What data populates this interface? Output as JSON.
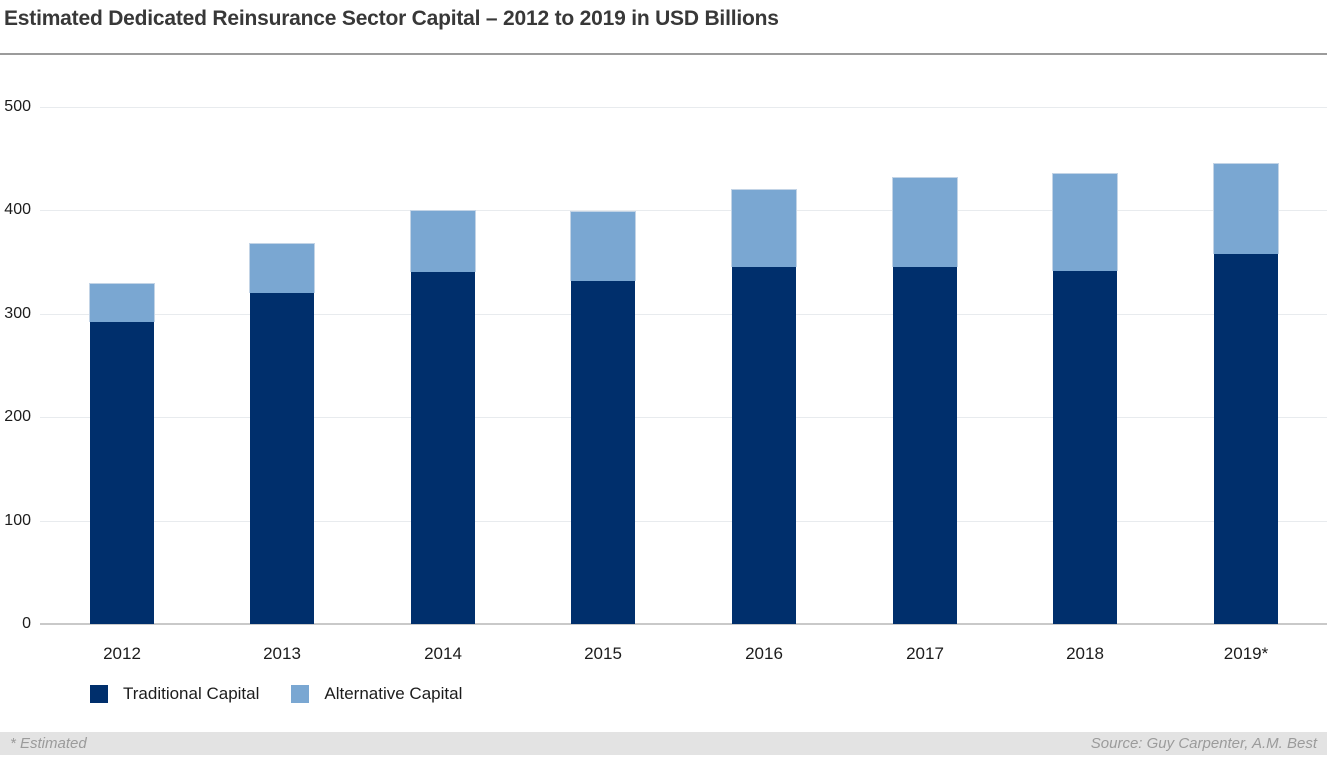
{
  "header": {
    "title": "Estimated Dedicated Reinsurance Sector Capital – 2012 to 2019 in USD Billions"
  },
  "footer": {
    "note": "* Estimated",
    "source": "Source: Guy Carpenter, A.M. Best"
  },
  "chart_data": {
    "type": "bar",
    "stacked": true,
    "title": "Estimated Dedicated Reinsurance Sector Capital – 2012 to 2019 in USD Billions",
    "categories": [
      "2012",
      "2013",
      "2014",
      "2015",
      "2016",
      "2017",
      "2018",
      "2019*"
    ],
    "series": [
      {
        "name": "Traditional Capital",
        "color": "#002f6c",
        "values": [
          292,
          320,
          340,
          332,
          345,
          345,
          341,
          358
        ]
      },
      {
        "name": "Alternative Capital",
        "color": "#7aa7d2",
        "values": [
          38,
          48,
          60,
          68,
          75,
          87,
          95,
          88
        ]
      }
    ],
    "totals": [
      330,
      368,
      400,
      400,
      420,
      432,
      436,
      446
    ],
    "xlabel": "",
    "ylabel": "",
    "ylim": [
      0,
      500
    ],
    "yticks": [
      0,
      100,
      200,
      300,
      400,
      500
    ],
    "grid": true,
    "legend_position": "bottom-left",
    "footnote": "* Estimated",
    "source": "Source: Guy Carpenter, A.M. Best"
  }
}
